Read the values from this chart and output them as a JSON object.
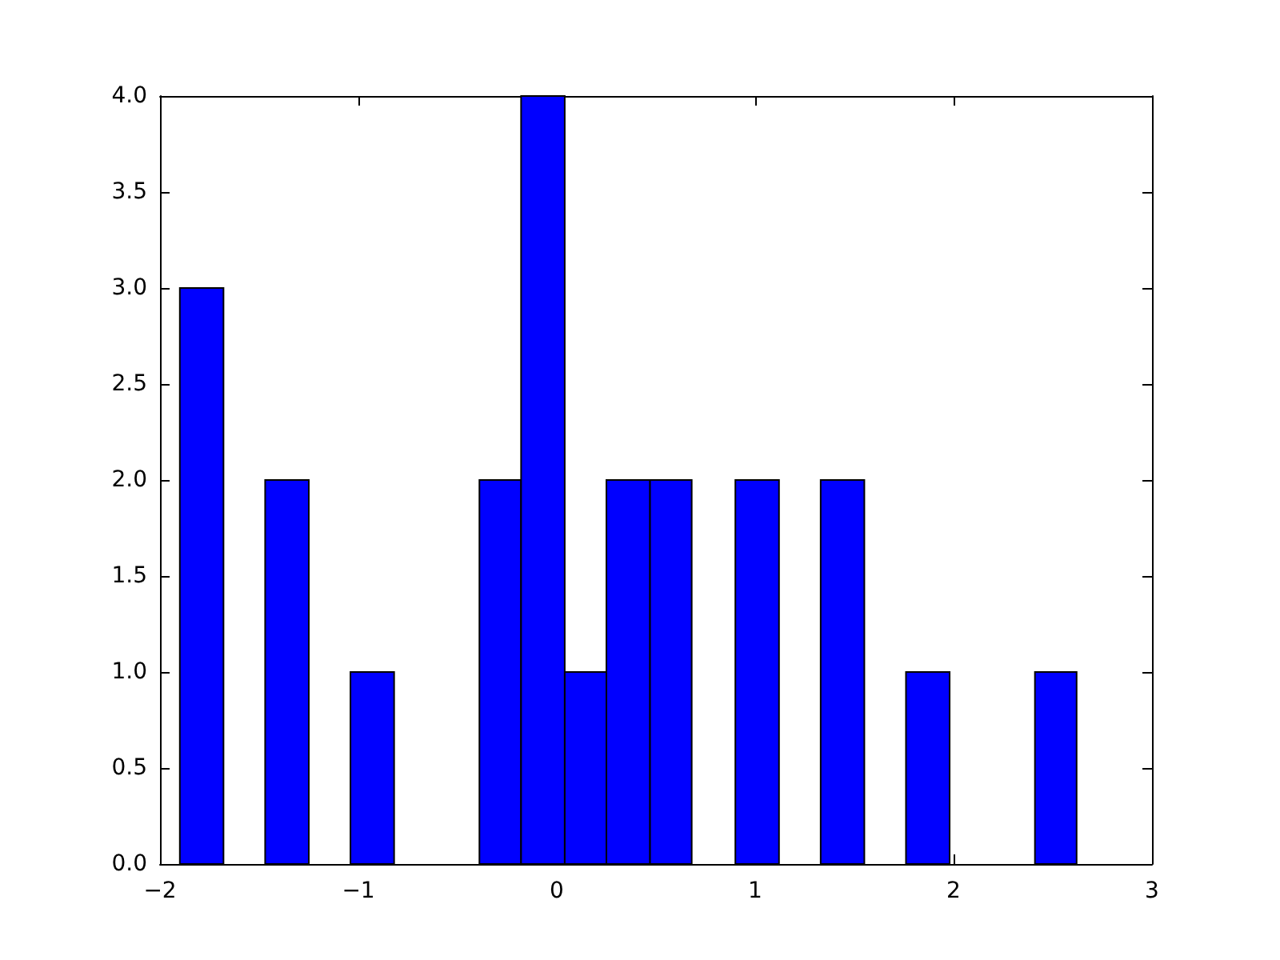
{
  "chart_data": {
    "type": "histogram",
    "color": "#0000ff",
    "bins": [
      -1.9,
      -1.68,
      -1.47,
      -1.25,
      -1.04,
      -0.82,
      -0.39,
      -0.18,
      0.04,
      0.25,
      0.47,
      0.68,
      0.9,
      1.12,
      1.33,
      1.55,
      1.76,
      1.98,
      2.41,
      2.62
    ],
    "values": [
      3,
      0,
      2,
      0,
      1,
      0,
      2,
      4,
      1,
      2,
      2,
      0,
      2,
      0,
      2,
      0,
      1,
      0,
      1
    ],
    "xlim": [
      -2,
      3
    ],
    "xticks": [
      -2,
      -1,
      0,
      1,
      2,
      3
    ],
    "ylim": [
      0,
      4
    ],
    "yticks": [
      {
        "value": 0,
        "label": "0.0"
      },
      {
        "value": 0.5,
        "label": "0.5"
      },
      {
        "value": 1,
        "label": "1.0"
      },
      {
        "value": 1.5,
        "label": "1.5"
      },
      {
        "value": 2,
        "label": "2.0"
      },
      {
        "value": 2.5,
        "label": "2.5"
      },
      {
        "value": 3,
        "label": "3.0"
      },
      {
        "value": 3.5,
        "label": "3.5"
      },
      {
        "value": 4,
        "label": "4.0"
      }
    ],
    "grid": false
  }
}
